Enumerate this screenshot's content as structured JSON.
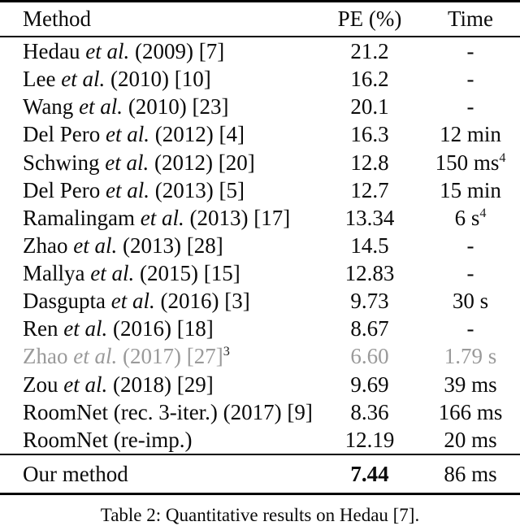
{
  "table": {
    "caption": "Table 2: Quantitative results on Hedau [7].",
    "headers": {
      "method": "Method",
      "pe": "PE (%)",
      "time": "Time"
    },
    "rows": [
      {
        "name": "Hedau ",
        "etal": "et al.",
        "rest": " (2009) [7]",
        "pe": "21.2",
        "time": "-"
      },
      {
        "name": "Lee ",
        "etal": "et al.",
        "rest": " (2010) [10]",
        "pe": "16.2",
        "time": "-"
      },
      {
        "name": "Wang ",
        "etal": "et al.",
        "rest": " (2010) [23]",
        "pe": "20.1",
        "time": "-"
      },
      {
        "name": "Del Pero ",
        "etal": "et al.",
        "rest": " (2012) [4]",
        "pe": "16.3",
        "time": "12 min"
      },
      {
        "name": "Schwing ",
        "etal": "et al.",
        "rest": " (2012) [20]",
        "pe": "12.8",
        "time": "150 ms",
        "time_sup": "4"
      },
      {
        "name": "Del Pero ",
        "etal": "et al.",
        "rest": " (2013) [5]",
        "pe": "12.7",
        "time": "15 min"
      },
      {
        "name": "Ramalingam ",
        "etal": "et al.",
        "rest": " (2013) [17]",
        "pe": "13.34",
        "time": "6 s",
        "time_sup": "4"
      },
      {
        "name": "Zhao ",
        "etal": "et al.",
        "rest": " (2013) [28]",
        "pe": "14.5",
        "time": "-"
      },
      {
        "name": "Mallya ",
        "etal": "et al.",
        "rest": " (2015) [15]",
        "pe": "12.83",
        "time": "-"
      },
      {
        "name": "Dasgupta ",
        "etal": "et al.",
        "rest": " (2016) [3]",
        "pe": "9.73",
        "time": "30 s"
      },
      {
        "name": "Ren ",
        "etal": "et al.",
        "rest": " (2016) [18]",
        "pe": "8.67",
        "time": "-"
      },
      {
        "name": "Zhao ",
        "etal": "et al.",
        "rest": " (2017) [27]",
        "method_sup": "3",
        "pe": "6.60",
        "time": "1.79 s",
        "muted": true
      },
      {
        "name": "Zou ",
        "etal": "et al.",
        "rest": " (2018) [29]",
        "pe": "9.69",
        "time": "39 ms"
      },
      {
        "name": "RoomNet (rec. 3-iter.) (2017) [9]",
        "etal": "",
        "rest": "",
        "pe": "8.36",
        "time": "166 ms"
      },
      {
        "name": "RoomNet (re-imp.)",
        "etal": "",
        "rest": "",
        "pe": "12.19",
        "time": "20 ms"
      }
    ],
    "final_row": {
      "name": "Our method",
      "etal": "",
      "rest": "",
      "pe": "7.44",
      "pe_bold": true,
      "time": "86 ms"
    }
  },
  "colors": {
    "text": "#0a0a0a",
    "muted_row": "#9a9a9a",
    "rule": "#000000",
    "background": "#ffffff"
  }
}
